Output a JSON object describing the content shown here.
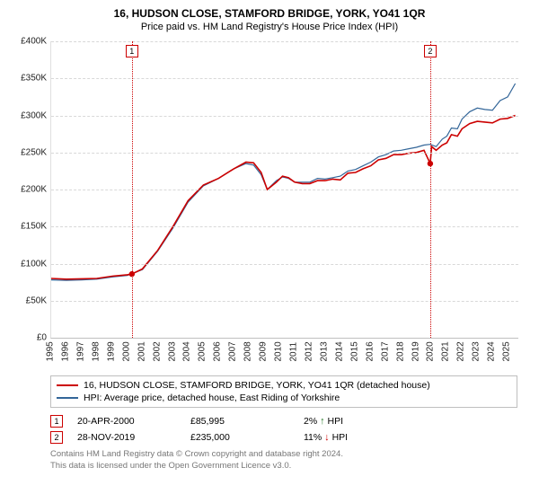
{
  "title": "16, HUDSON CLOSE, STAMFORD BRIDGE, YORK, YO41 1QR",
  "subtitle": "Price paid vs. HM Land Registry's House Price Index (HPI)",
  "chart": {
    "type": "line",
    "background_color": "#ffffff",
    "grid_color": "#d8d8d8",
    "label_fontsize": 10,
    "y": {
      "min": 0,
      "max": 400000,
      "step": 50000,
      "labels": [
        "£0",
        "£50K",
        "£100K",
        "£150K",
        "£200K",
        "£250K",
        "£300K",
        "£350K",
        "£400K"
      ]
    },
    "x": {
      "min": 1995,
      "max": 2025.7,
      "step": 1,
      "labels": [
        "1995",
        "1996",
        "1997",
        "1998",
        "1999",
        "2000",
        "2001",
        "2002",
        "2003",
        "2004",
        "2005",
        "2006",
        "2007",
        "2008",
        "2009",
        "2010",
        "2011",
        "2012",
        "2013",
        "2014",
        "2015",
        "2016",
        "2017",
        "2018",
        "2019",
        "2020",
        "2021",
        "2022",
        "2023",
        "2024",
        "2025"
      ]
    },
    "vlines": [
      {
        "x": 2000.3,
        "label": "1",
        "color": "#cc0000"
      },
      {
        "x": 2019.91,
        "label": "2",
        "color": "#cc0000"
      }
    ],
    "sale_points": [
      {
        "x": 2000.3,
        "y": 85995,
        "color": "#cc0000"
      },
      {
        "x": 2019.91,
        "y": 235000,
        "color": "#cc0000"
      }
    ],
    "series": [
      {
        "label": "16, HUDSON CLOSE, STAMFORD BRIDGE, YORK, YO41 1QR (detached house)",
        "color": "#cc0000",
        "line_width": 1.6,
        "points": [
          [
            1995.0,
            80000
          ],
          [
            1996.0,
            79000
          ],
          [
            1997.0,
            79500
          ],
          [
            1998.0,
            80000
          ],
          [
            1999.0,
            83000
          ],
          [
            2000.0,
            85000
          ],
          [
            2000.3,
            85995
          ],
          [
            2001.0,
            93000
          ],
          [
            2002.0,
            118000
          ],
          [
            2003.0,
            150000
          ],
          [
            2004.0,
            185000
          ],
          [
            2005.0,
            206000
          ],
          [
            2006.0,
            215000
          ],
          [
            2007.0,
            228000
          ],
          [
            2007.8,
            237000
          ],
          [
            2008.3,
            236000
          ],
          [
            2008.8,
            223000
          ],
          [
            2009.2,
            200000
          ],
          [
            2009.8,
            210000
          ],
          [
            2010.2,
            218000
          ],
          [
            2010.6,
            216000
          ],
          [
            2011.0,
            210000
          ],
          [
            2011.5,
            208000
          ],
          [
            2012.0,
            208000
          ],
          [
            2012.5,
            212000
          ],
          [
            2013.0,
            212000
          ],
          [
            2013.5,
            214000
          ],
          [
            2014.0,
            213000
          ],
          [
            2014.5,
            222000
          ],
          [
            2015.0,
            223000
          ],
          [
            2015.5,
            228000
          ],
          [
            2016.0,
            232000
          ],
          [
            2016.5,
            240000
          ],
          [
            2017.0,
            242000
          ],
          [
            2017.5,
            247000
          ],
          [
            2018.0,
            247000
          ],
          [
            2018.5,
            249000
          ],
          [
            2019.0,
            250000
          ],
          [
            2019.5,
            253000
          ],
          [
            2019.91,
            235000
          ],
          [
            2020.0,
            258000
          ],
          [
            2020.3,
            253000
          ],
          [
            2020.7,
            260000
          ],
          [
            2021.0,
            263000
          ],
          [
            2021.3,
            274000
          ],
          [
            2021.7,
            272000
          ],
          [
            2022.0,
            282000
          ],
          [
            2022.5,
            289000
          ],
          [
            2023.0,
            292000
          ],
          [
            2023.5,
            291000
          ],
          [
            2024.0,
            290000
          ],
          [
            2024.5,
            295000
          ],
          [
            2025.0,
            296000
          ],
          [
            2025.5,
            300000
          ]
        ]
      },
      {
        "label": "HPI: Average price, detached house, East Riding of Yorkshire",
        "color": "#336699",
        "line_width": 1.2,
        "points": [
          [
            1995.0,
            78000
          ],
          [
            1996.0,
            77500
          ],
          [
            1997.0,
            78000
          ],
          [
            1998.0,
            79000
          ],
          [
            1999.0,
            82000
          ],
          [
            2000.0,
            84000
          ],
          [
            2001.0,
            92000
          ],
          [
            2002.0,
            117000
          ],
          [
            2003.0,
            148000
          ],
          [
            2004.0,
            183000
          ],
          [
            2005.0,
            205000
          ],
          [
            2006.0,
            215000
          ],
          [
            2007.0,
            228000
          ],
          [
            2007.8,
            235000
          ],
          [
            2008.3,
            233000
          ],
          [
            2008.8,
            220000
          ],
          [
            2009.2,
            200000
          ],
          [
            2009.8,
            212000
          ],
          [
            2010.2,
            217000
          ],
          [
            2010.6,
            215000
          ],
          [
            2011.0,
            210000
          ],
          [
            2012.0,
            210000
          ],
          [
            2012.5,
            215000
          ],
          [
            2013.0,
            214000
          ],
          [
            2013.5,
            216000
          ],
          [
            2014.0,
            218000
          ],
          [
            2014.5,
            225000
          ],
          [
            2015.0,
            227000
          ],
          [
            2015.5,
            232000
          ],
          [
            2016.0,
            237000
          ],
          [
            2016.5,
            244000
          ],
          [
            2017.0,
            247000
          ],
          [
            2017.5,
            252000
          ],
          [
            2018.0,
            253000
          ],
          [
            2018.5,
            255000
          ],
          [
            2019.0,
            257000
          ],
          [
            2019.5,
            260000
          ],
          [
            2019.9,
            261000
          ],
          [
            2020.3,
            258000
          ],
          [
            2020.7,
            268000
          ],
          [
            2021.0,
            272000
          ],
          [
            2021.3,
            283000
          ],
          [
            2021.7,
            282000
          ],
          [
            2022.0,
            295000
          ],
          [
            2022.5,
            305000
          ],
          [
            2023.0,
            310000
          ],
          [
            2023.5,
            308000
          ],
          [
            2024.0,
            307000
          ],
          [
            2024.5,
            320000
          ],
          [
            2025.0,
            325000
          ],
          [
            2025.5,
            343000
          ]
        ]
      }
    ]
  },
  "legend": {
    "series1": "16, HUDSON CLOSE, STAMFORD BRIDGE, YORK, YO41 1QR (detached house)",
    "series2": "HPI: Average price, detached house, East Riding of Yorkshire"
  },
  "sales": [
    {
      "n": "1",
      "date": "20-APR-2000",
      "price": "£85,995",
      "delta": "2% ↑ HPI",
      "arrow_color": "#267a26"
    },
    {
      "n": "2",
      "date": "28-NOV-2019",
      "price": "£235,000",
      "delta": "11% ↓ HPI",
      "arrow_color": "#cc0000"
    }
  ],
  "footer": {
    "l1": "Contains HM Land Registry data © Crown copyright and database right 2024.",
    "l2": "This data is licensed under the Open Government Licence v3.0."
  }
}
